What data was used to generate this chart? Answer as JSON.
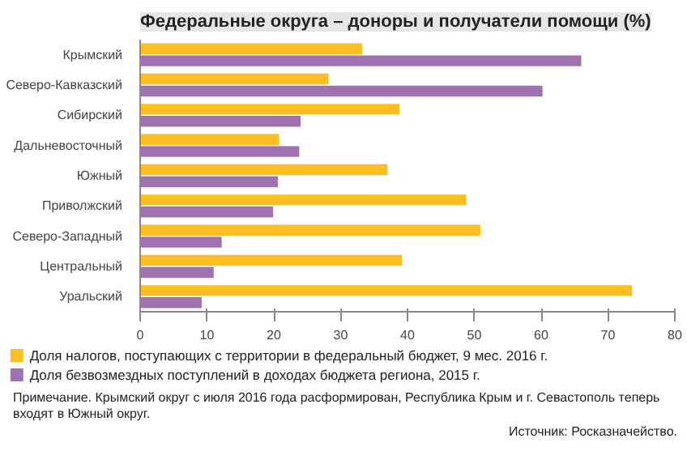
{
  "chart_data": {
    "type": "bar",
    "orientation": "horizontal",
    "title": "Федеральные округа – доноры и получатели помощи (%)",
    "categories": [
      "Крымский",
      "Северо-Кавказский",
      "Сибирский",
      "Дальневосточный",
      "Южный",
      "Приволжский",
      "Северо-Западный",
      "Центральный",
      "Уральский"
    ],
    "series": [
      {
        "name": "Доля налогов, поступающих с территории в федеральный бюджет, 9 мес. 2016 г.",
        "color": "#fbbf24",
        "values": [
          33.2,
          28.2,
          38.8,
          20.8,
          37.0,
          48.8,
          50.9,
          39.2,
          73.6
        ]
      },
      {
        "name": "Доля безвозмездных поступлений в доходах бюджета региона, 2015 г.",
        "color": "#a071b0",
        "values": [
          66.0,
          60.2,
          24.0,
          23.8,
          20.6,
          19.9,
          12.2,
          11.0,
          9.2
        ]
      }
    ],
    "xlim": [
      0,
      80
    ],
    "xticks": [
      0,
      10,
      20,
      30,
      40,
      50,
      60,
      70,
      80
    ],
    "grid": false,
    "legend": "bottom",
    "annotations": [
      "Примечание. Крымский округ с июля 2016 года расформирован, Республика Крым и г. Севастополь теперь входят в Южный округ.",
      "Источник: Росказначейство."
    ]
  }
}
